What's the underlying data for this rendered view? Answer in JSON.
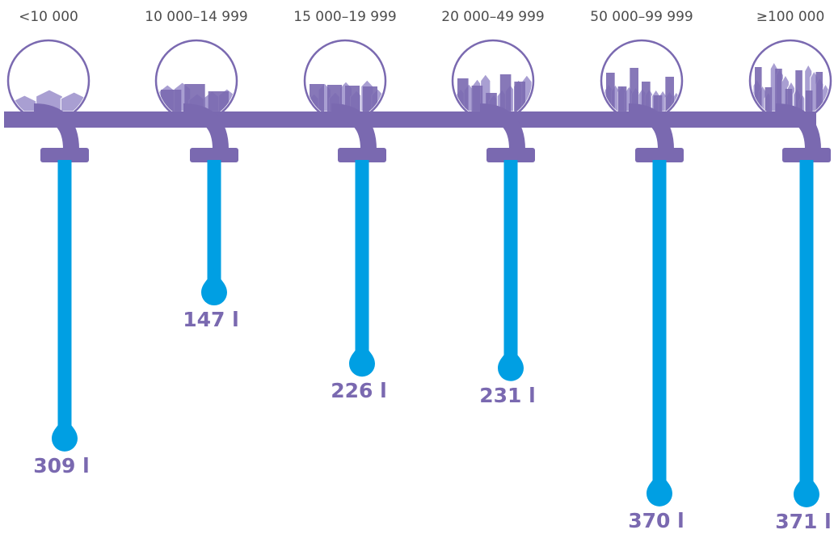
{
  "chart_data": {
    "type": "bar",
    "categories": [
      "<10 000",
      "10 000–14 999",
      "15 000–19 999",
      "20 000–49 999",
      "50 000–99 999",
      "≥100 000"
    ],
    "values": [
      309,
      147,
      226,
      231,
      370,
      371
    ],
    "value_labels": [
      "309 l",
      "147 l",
      "226 l",
      "231 l",
      "370 l",
      "371 l"
    ],
    "unit": "l",
    "title": "",
    "xlabel": "",
    "ylabel": "",
    "ylim": [
      0,
      371
    ]
  },
  "colors": {
    "pipe": "#7a69b0",
    "water": "#009fe3",
    "label": "#7a69b0",
    "building_dark": "#7a69b0",
    "building_light": "#a99fd2",
    "category_text": "#4d4d4d"
  }
}
